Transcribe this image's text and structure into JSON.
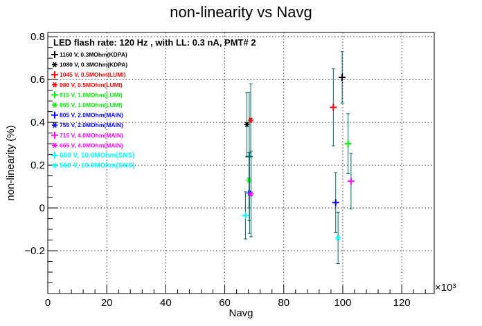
{
  "chart_data": {
    "type": "scatter",
    "title": "non-linearity vs Navg",
    "xlabel": "Navg",
    "ylabel": "non-linearity (%)",
    "x_multiplier_label": "×10³",
    "annotation": "LED flash rate: 120 Hz , with LL: 0.3 nA, PMT# 2",
    "xlim": [
      0,
      131
    ],
    "ylim": [
      -0.4,
      0.82
    ],
    "x_unit_scale": 1000,
    "x_ticks": [
      0,
      20,
      40,
      60,
      80,
      100,
      120
    ],
    "x_tick_labels": [
      "0",
      "20",
      "40",
      "60",
      "80",
      "100",
      "120"
    ],
    "y_ticks": [
      -0.2,
      0,
      0.2,
      0.4,
      0.6,
      0.8
    ],
    "y_tick_labels": [
      "−0.2",
      "0",
      "0.2",
      "0.4",
      "0.6",
      "0.8"
    ],
    "grid": true,
    "legend_placement": "top-left",
    "series": [
      {
        "name": "1160 V, 0.3MOhm(KDPA)",
        "color": "#000000",
        "marker": "plus",
        "points": [
          {
            "x": 99.8,
            "y": 0.61,
            "err": 0.12
          }
        ]
      },
      {
        "name": "1080 V, 0.3MOhm(KDPA)",
        "color": "#000000",
        "marker": "star",
        "points": [
          {
            "x": 67.5,
            "y": 0.39,
            "err": 0.15
          }
        ]
      },
      {
        "name": "1045 V, 0.5MOhm(LUMI)",
        "color": "#ff0000",
        "marker": "plus",
        "points": [
          {
            "x": 96.8,
            "y": 0.47,
            "err": 0.18
          }
        ]
      },
      {
        "name": "980 V, 0.5MOhm(LUMI)",
        "color": "#ff0000",
        "marker": "star",
        "points": [
          {
            "x": 68.8,
            "y": 0.41,
            "err": 0.17
          }
        ]
      },
      {
        "name": "915 V, 1.0MOhm(LUMI)",
        "color": "#00ee00",
        "marker": "plus",
        "points": [
          {
            "x": 101.8,
            "y": 0.3,
            "err": 0.14
          }
        ]
      },
      {
        "name": "865 V, 1.0MOhm(LUMI)",
        "color": "#00ee00",
        "marker": "star",
        "points": [
          {
            "x": 68.2,
            "y": 0.13,
            "err": 0.13
          }
        ]
      },
      {
        "name": "805 V, 2.0MOhm(MAIN)",
        "color": "#0000ff",
        "marker": "plus",
        "points": [
          {
            "x": 97.6,
            "y": 0.025,
            "err": 0.14
          }
        ]
      },
      {
        "name": "755 V, 2.0MOhm(MAIN)",
        "color": "#0000ff",
        "marker": "star",
        "points": [
          {
            "x": 68.4,
            "y": 0.07,
            "err": 0.19
          }
        ]
      },
      {
        "name": "715 V, 4.0MOhm(MAIN)",
        "color": "#ff00ff",
        "marker": "plus",
        "points": [
          {
            "x": 102.8,
            "y": 0.125,
            "err": 0.13
          }
        ]
      },
      {
        "name": "665 V, 4.0MOhm(MAIN)",
        "color": "#ff00ff",
        "marker": "star",
        "points": [
          {
            "x": 68.9,
            "y": 0.065,
            "err": 0.2
          }
        ]
      },
      {
        "name": "600 V, 10.0MOhm(SNS)",
        "color": "#00ffff",
        "marker": "plus",
        "points": [
          {
            "x": 67.0,
            "y": -0.035,
            "err": 0.11
          }
        ]
      },
      {
        "name": "560 V, 10.0MOhm(SNS)",
        "color": "#00ffff",
        "marker": "star",
        "points": [
          {
            "x": 98.4,
            "y": -0.14,
            "err": 0.12
          }
        ]
      }
    ],
    "extra_point": {
      "color": "#006666",
      "x": 68.3,
      "y": 0.24,
      "err": 0.3
    }
  }
}
